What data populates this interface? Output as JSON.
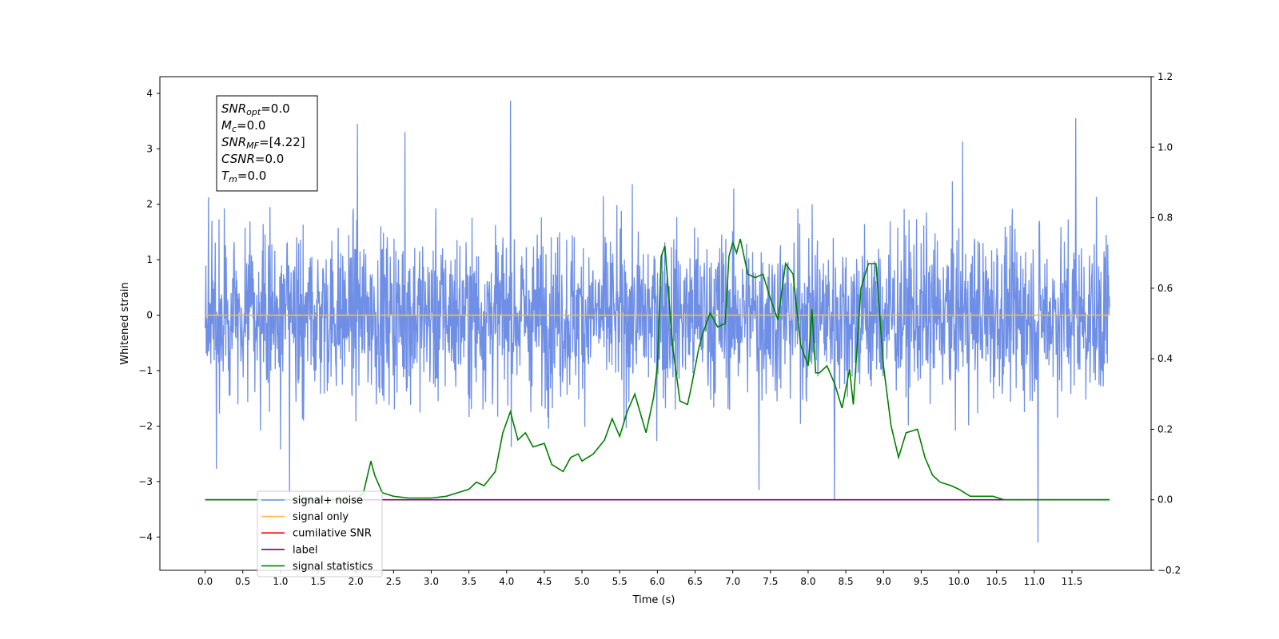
{
  "chart_data": {
    "type": "line",
    "xlabel": "Time (s)",
    "ylabel": "Whitened strain",
    "xlim": [
      -0.6,
      12.55
    ],
    "ylim": [
      -4.6,
      4.3
    ],
    "y2lim": [
      -0.2,
      1.2
    ],
    "x_ticks": [
      0.0,
      0.5,
      1.0,
      1.5,
      2.0,
      2.5,
      3.0,
      3.5,
      4.0,
      4.5,
      5.0,
      5.5,
      6.0,
      6.5,
      7.0,
      7.5,
      8.0,
      8.5,
      9.0,
      9.5,
      10.0,
      10.5,
      11.0,
      11.5
    ],
    "x_tick_labels": [
      "0.0",
      "0.5",
      "1.0",
      "1.5",
      "2.0",
      "2.5",
      "3.0",
      "3.5",
      "4.0",
      "4.5",
      "5.0",
      "5.5",
      "6.0",
      "6.5",
      "7.0",
      "7.5",
      "8.0",
      "8.5",
      "9.0",
      "9.5",
      "10.0",
      "10.5",
      "11.0",
      "11.5"
    ],
    "y_ticks": [
      -4,
      -3,
      -2,
      -1,
      0,
      1,
      2,
      3,
      4
    ],
    "y_tick_labels": [
      "−4",
      "−3",
      "−2",
      "−1",
      "0",
      "1",
      "2",
      "3",
      "4"
    ],
    "y2_ticks": [
      -0.2,
      0.0,
      0.2,
      0.4,
      0.6,
      0.8,
      1.0,
      1.2
    ],
    "y2_tick_labels": [
      "−0.2",
      "0.0",
      "0.2",
      "0.4",
      "0.6",
      "0.8",
      "1.0",
      "1.2"
    ],
    "grid": false,
    "legend_position": "lower-left",
    "annotation_lines": [
      {
        "name": "SNR",
        "sub": "opt",
        "value": "=0.0"
      },
      {
        "name": "M",
        "sub": "c",
        "value": "=0.0"
      },
      {
        "name": "SNR",
        "sub": "MF",
        "value": "=[4.22]"
      },
      {
        "name": "CSNR",
        "sub": "",
        "value": "=0.0"
      },
      {
        "name": "T",
        "sub": "m",
        "value": "=0.0"
      }
    ],
    "noise": {
      "t_start": 0.0,
      "t_end": 12.0,
      "std": 0.75,
      "peaks": [
        [
          4.05,
          3.87
        ],
        [
          11.55,
          3.55
        ],
        [
          2.02,
          3.45
        ],
        [
          2.65,
          3.3
        ],
        [
          10.05,
          3.13
        ],
        [
          11.05,
          -4.1
        ],
        [
          8.35,
          -3.33
        ],
        [
          1.12,
          -3.22
        ],
        [
          7.35,
          -3.15
        ],
        [
          0.15,
          -2.77
        ]
      ]
    },
    "series": [
      {
        "name": "signal+ noise",
        "axis": "left",
        "color": "#6f8fe6"
      },
      {
        "name": "signal only",
        "axis": "left",
        "color": "#ffb74d",
        "x": [
          0.0,
          12.0
        ],
        "y": [
          0.0,
          0.0
        ]
      },
      {
        "name": "cumilative SNR",
        "axis": "right",
        "color": "#ff0000",
        "x": [],
        "y": []
      },
      {
        "name": "label",
        "axis": "right",
        "color": "#800080",
        "x": [
          0.0,
          12.0
        ],
        "y": [
          0.0,
          0.0
        ]
      },
      {
        "name": "signal statistics",
        "axis": "right",
        "color": "#008000",
        "x": [
          0.0,
          0.5,
          1.0,
          1.5,
          2.0,
          2.1,
          2.2,
          2.25,
          2.35,
          2.5,
          2.7,
          3.0,
          3.2,
          3.35,
          3.5,
          3.6,
          3.7,
          3.85,
          3.95,
          4.05,
          4.15,
          4.25,
          4.35,
          4.5,
          4.6,
          4.75,
          4.85,
          4.95,
          5.0,
          5.15,
          5.3,
          5.4,
          5.5,
          5.6,
          5.7,
          5.85,
          5.95,
          6.0,
          6.05,
          6.1,
          6.2,
          6.3,
          6.4,
          6.45,
          6.55,
          6.6,
          6.7,
          6.8,
          6.9,
          6.95,
          7.0,
          7.05,
          7.1,
          7.2,
          7.3,
          7.4,
          7.5,
          7.6,
          7.7,
          7.8,
          7.9,
          8.0,
          8.05,
          8.1,
          8.15,
          8.25,
          8.35,
          8.45,
          8.55,
          8.6,
          8.7,
          8.8,
          8.9,
          9.0,
          9.1,
          9.2,
          9.3,
          9.45,
          9.55,
          9.65,
          9.75,
          9.9,
          10.0,
          10.15,
          10.3,
          10.45,
          10.6,
          10.8,
          11.0,
          11.5,
          12.0
        ],
        "y": [
          0.0,
          0.0,
          0.0,
          0.0,
          0.0,
          0.02,
          0.11,
          0.07,
          0.02,
          0.01,
          0.005,
          0.005,
          0.01,
          0.02,
          0.03,
          0.05,
          0.04,
          0.08,
          0.19,
          0.25,
          0.17,
          0.19,
          0.15,
          0.16,
          0.1,
          0.08,
          0.12,
          0.13,
          0.11,
          0.13,
          0.17,
          0.23,
          0.18,
          0.25,
          0.3,
          0.19,
          0.29,
          0.38,
          0.69,
          0.72,
          0.44,
          0.28,
          0.27,
          0.32,
          0.43,
          0.47,
          0.53,
          0.49,
          0.5,
          0.69,
          0.73,
          0.7,
          0.74,
          0.64,
          0.63,
          0.64,
          0.57,
          0.51,
          0.67,
          0.64,
          0.44,
          0.38,
          0.54,
          0.36,
          0.36,
          0.38,
          0.33,
          0.26,
          0.37,
          0.27,
          0.6,
          0.67,
          0.67,
          0.38,
          0.21,
          0.12,
          0.19,
          0.2,
          0.12,
          0.07,
          0.05,
          0.04,
          0.03,
          0.01,
          0.01,
          0.01,
          0.0,
          0.0,
          0.0,
          0.0,
          0.0
        ]
      }
    ]
  }
}
